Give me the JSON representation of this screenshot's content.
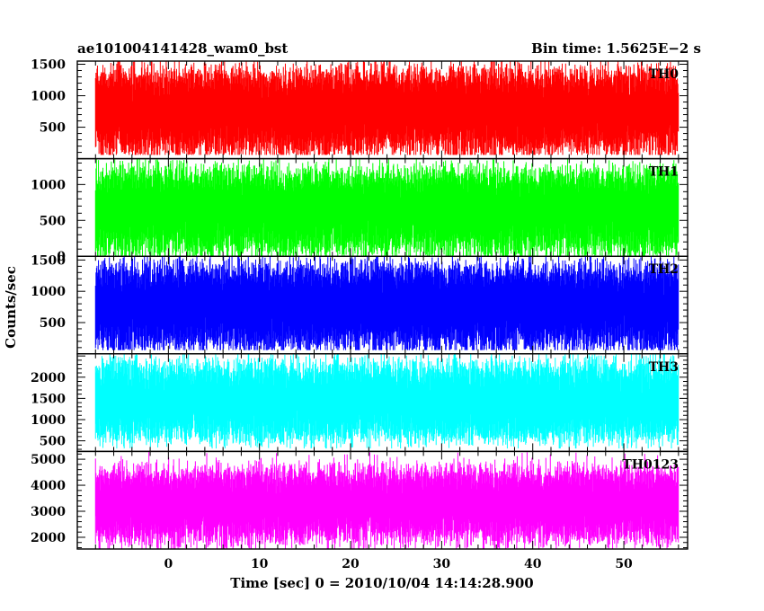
{
  "chart_data": {
    "type": "line",
    "title": "ae101004141428_wam0_bst",
    "subtitle": "Bin time: 1.5625E−2 s",
    "xlabel": "Time [sec] 0 = 2010/10/04 14:14:28.900",
    "ylabel": "Counts/sec",
    "xlim": [
      -10,
      57
    ],
    "x_data_range": [
      -8,
      56
    ],
    "xticks": [
      0,
      10,
      20,
      30,
      40,
      50
    ],
    "grid": false,
    "legend": "none",
    "panels": [
      {
        "name": "TH0",
        "color": "#ff0000",
        "ylim": [
          0,
          1550
        ],
        "yticks": [
          500,
          1000,
          1500
        ],
        "envelope": {
          "mean": 750,
          "low_mean": 190,
          "high_mean": 1310,
          "min": 60,
          "max": 1550
        }
      },
      {
        "name": "TH1",
        "color": "#00ff00",
        "ylim": [
          0,
          1360
        ],
        "yticks": [
          0,
          500,
          1000
        ],
        "envelope": {
          "mean": 650,
          "low_mean": 130,
          "high_mean": 1130,
          "min": 5,
          "max": 1350
        }
      },
      {
        "name": "TH2",
        "color": "#0000ff",
        "ylim": [
          0,
          1560
        ],
        "yticks": [
          500,
          1000,
          1500
        ],
        "envelope": {
          "mean": 750,
          "low_mean": 180,
          "high_mean": 1320,
          "min": 60,
          "max": 1560
        }
      },
      {
        "name": "TH3",
        "color": "#00ffff",
        "ylim": [
          250,
          2550
        ],
        "yticks": [
          500,
          1000,
          1500,
          2000
        ],
        "envelope": {
          "mean": 1400,
          "low_mean": 650,
          "high_mean": 2200,
          "min": 320,
          "max": 2550
        }
      },
      {
        "name": "TH0123",
        "color": "#ff00ff",
        "ylim": [
          1550,
          5300
        ],
        "yticks": [
          2000,
          3000,
          4000,
          5000
        ],
        "envelope": {
          "mean": 3250,
          "low_mean": 2050,
          "high_mean": 4450,
          "min": 1550,
          "max": 5300
        }
      }
    ]
  }
}
